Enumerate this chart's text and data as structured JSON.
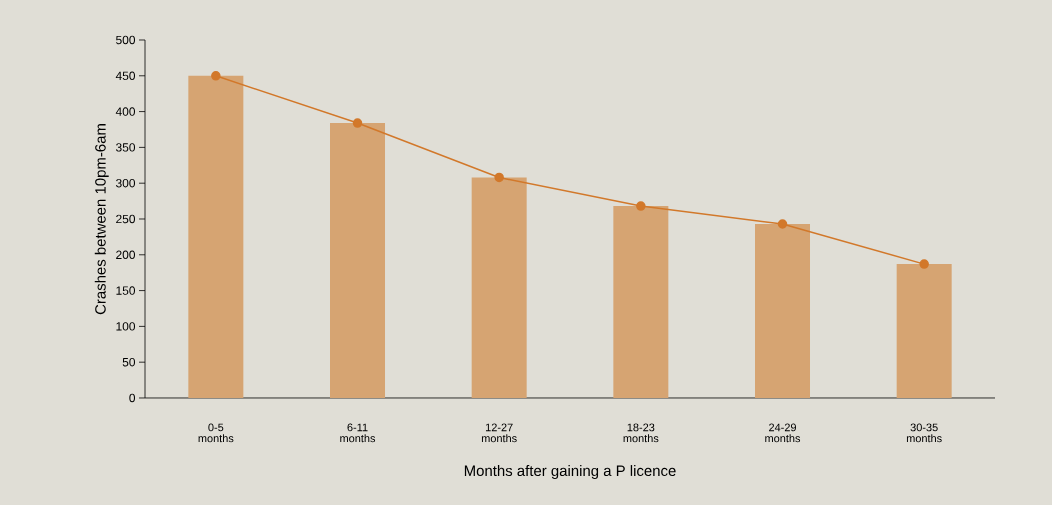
{
  "chart_data": {
    "type": "bar",
    "xlabel": "Months after gaining a P licence",
    "ylabel": "Crashes between 10pm-6am",
    "categories": [
      "0-5\nmonths",
      "6-11\nmonths",
      "12-27\nmonths",
      "18-23\nmonths",
      "24-29\nmonths",
      "30-35\nmonths"
    ],
    "series": [
      {
        "color": "#d6a472",
        "values": [
          450,
          384,
          308,
          268,
          243,
          187
        ]
      },
      {
        "type": "line",
        "color": "#d2782a",
        "marker": "circle",
        "values": [
          450,
          384,
          308,
          268,
          243,
          187
        ]
      }
    ],
    "ylim": [
      0,
      500
    ],
    "yticks": [
      0,
      50,
      100,
      150,
      200,
      250,
      300,
      350,
      400,
      450,
      500
    ],
    "grid": false
  }
}
